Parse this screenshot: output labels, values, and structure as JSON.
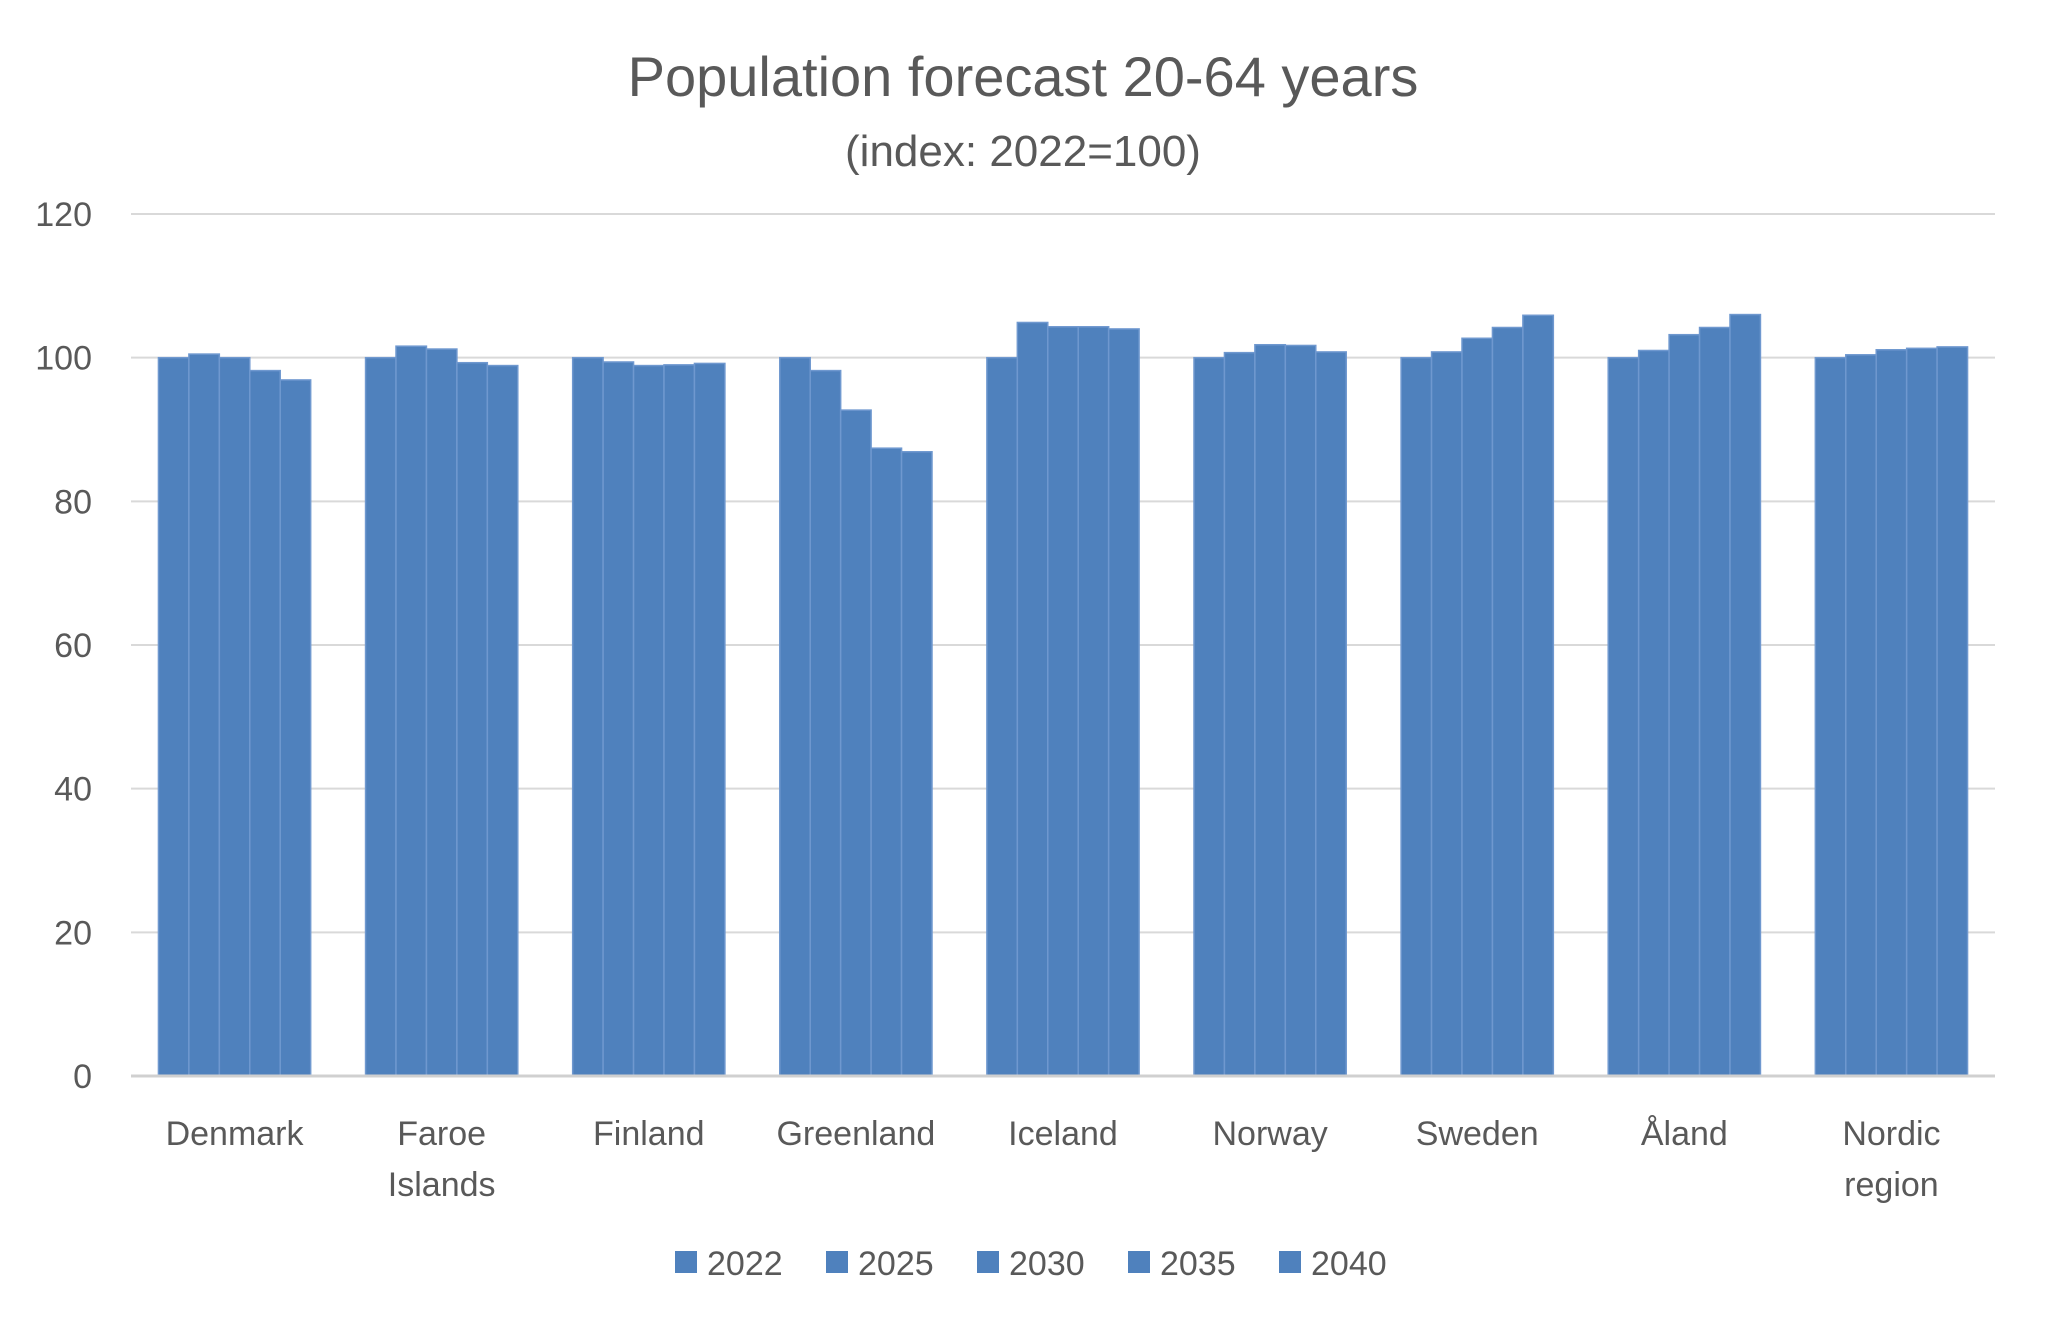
{
  "chart_data": {
    "type": "bar",
    "title": "Population forecast 20-64 years",
    "subtitle": "(index: 2022=100)",
    "xlabel": "",
    "ylabel": "",
    "ylim": [
      0,
      120
    ],
    "yticks": [
      0,
      20,
      40,
      60,
      80,
      100,
      120
    ],
    "grid": true,
    "legend_position": "bottom",
    "bar_color": "#4f81bd",
    "categories": [
      [
        "Denmark"
      ],
      [
        "Faroe",
        "Islands"
      ],
      [
        "Finland"
      ],
      [
        "Greenland"
      ],
      [
        "Iceland"
      ],
      [
        "Norway"
      ],
      [
        "Sweden"
      ],
      [
        "Åland"
      ],
      [
        "Nordic",
        "region"
      ]
    ],
    "series": [
      {
        "name": "2022",
        "values": [
          100,
          100,
          100,
          100,
          100,
          100,
          100,
          100,
          100
        ]
      },
      {
        "name": "2025",
        "values": [
          100.5,
          101.6,
          99.4,
          98.2,
          104.9,
          100.7,
          100.8,
          101.0,
          100.4
        ]
      },
      {
        "name": "2030",
        "values": [
          100.0,
          101.2,
          98.9,
          92.7,
          104.3,
          101.8,
          102.7,
          103.2,
          101.1
        ]
      },
      {
        "name": "2035",
        "values": [
          98.2,
          99.3,
          99.0,
          87.4,
          104.3,
          101.7,
          104.2,
          104.2,
          101.3
        ]
      },
      {
        "name": "2040",
        "values": [
          96.9,
          98.9,
          99.2,
          86.9,
          104.0,
          100.8,
          105.9,
          106.0,
          101.5
        ]
      }
    ]
  }
}
